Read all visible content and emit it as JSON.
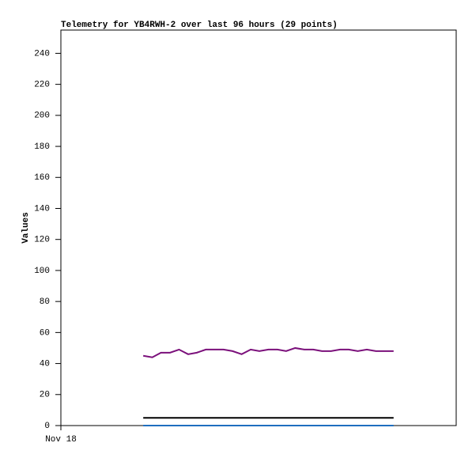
{
  "chart_data": {
    "type": "line",
    "title": "Telemetry for YB4RWH-2 over last 96 hours (29 points)",
    "y_label": "Values",
    "x": [
      20,
      22.2,
      24.3,
      26.5,
      28.7,
      30.9,
      33.0,
      35.2,
      37.4,
      39.5,
      41.7,
      43.9,
      46.1,
      48.2,
      50.4,
      52.6,
      54.7,
      56.9,
      59.1,
      61.3,
      63.4,
      65.6,
      67.8,
      69.9,
      72.1,
      74.3,
      76.5,
      78.6,
      80.8
    ],
    "series": [
      {
        "color": "#7b107b",
        "values": [
          45,
          44,
          47,
          47,
          49,
          46,
          47,
          49,
          49,
          49,
          48,
          46,
          49,
          48,
          49,
          49,
          48,
          50,
          49,
          49,
          48,
          48,
          49,
          49,
          48,
          49,
          48,
          48,
          48
        ]
      },
      {
        "color": "#000000",
        "values": [
          5,
          5,
          5,
          5,
          5,
          5,
          5,
          5,
          5,
          5,
          5,
          5,
          5,
          5,
          5,
          5,
          5,
          5,
          5,
          5,
          5,
          5,
          5,
          5,
          5,
          5,
          5,
          5,
          5
        ]
      },
      {
        "color": "#1f6fbf",
        "values": [
          0,
          0,
          0,
          0,
          0,
          0,
          0,
          0,
          0,
          0,
          0,
          0,
          0,
          0,
          0,
          0,
          0,
          0,
          0,
          0,
          0,
          0,
          0,
          0,
          0,
          0,
          0,
          0,
          0
        ]
      }
    ],
    "xlim": [
      0,
      96
    ],
    "xticks": [
      {
        "value": 0,
        "label": "Nov 18"
      }
    ],
    "ylim": [
      0,
      255
    ],
    "yticks": [
      0,
      20,
      40,
      60,
      80,
      100,
      120,
      140,
      160,
      180,
      200,
      220,
      240
    ]
  }
}
